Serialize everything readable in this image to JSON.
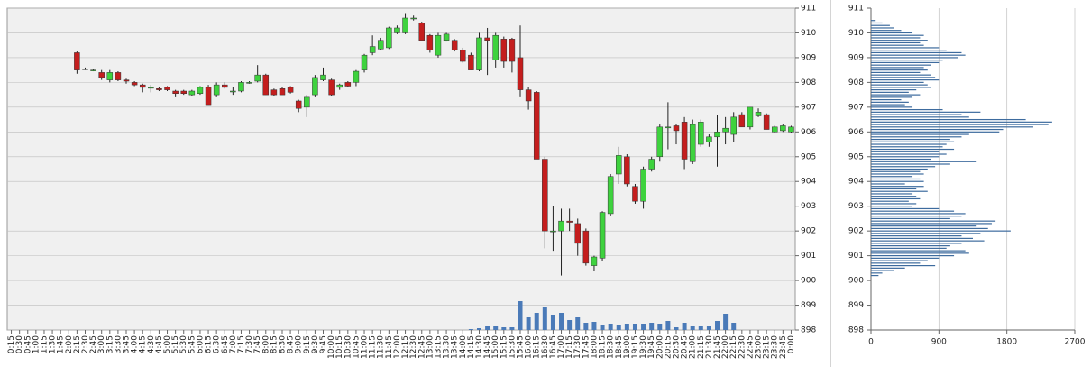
{
  "chart_data": [
    {
      "type": "candlestick",
      "categories": [
        "0:15",
        "0:30",
        "0:45",
        "1:00",
        "1:15",
        "1:30",
        "1:45",
        "2:00",
        "2:15",
        "2:30",
        "2:45",
        "3:00",
        "3:15",
        "3:30",
        "3:45",
        "4:00",
        "4:15",
        "4:30",
        "4:45",
        "5:00",
        "5:15",
        "5:30",
        "5:45",
        "6:00",
        "6:15",
        "6:30",
        "6:45",
        "7:00",
        "7:15",
        "7:30",
        "7:45",
        "8:00",
        "8:15",
        "8:30",
        "8:45",
        "9:00",
        "9:15",
        "9:30",
        "9:45",
        "10:00",
        "10:15",
        "10:30",
        "10:45",
        "11:00",
        "11:15",
        "11:30",
        "11:45",
        "12:00",
        "12:15",
        "12:30",
        "12:45",
        "13:00",
        "13:15",
        "13:30",
        "13:45",
        "14:00",
        "14:15",
        "14:30",
        "14:45",
        "15:00",
        "15:15",
        "15:30",
        "15:45",
        "16:00",
        "16:15",
        "16:30",
        "16:45",
        "17:00",
        "17:15",
        "17:30",
        "17:45",
        "18:00",
        "18:15",
        "18:30",
        "18:45",
        "19:00",
        "19:15",
        "19:30",
        "19:45",
        "20:00",
        "20:15",
        "20:30",
        "20:45",
        "21:00",
        "21:15",
        "21:30",
        "21:45",
        "22:00",
        "22:15",
        "22:30",
        "22:45",
        "23:00",
        "23:15",
        "23:30",
        "23:45",
        "0:00"
      ],
      "open": [
        null,
        null,
        null,
        null,
        null,
        null,
        null,
        null,
        909.2,
        908.55,
        908.5,
        908.4,
        908.1,
        908.4,
        908.1,
        908.0,
        907.9,
        907.8,
        907.75,
        907.8,
        907.65,
        907.65,
        907.5,
        907.55,
        907.8,
        907.5,
        907.9,
        907.65,
        907.65,
        908.0,
        908.05,
        908.3,
        907.7,
        907.75,
        907.8,
        907.25,
        907.0,
        907.5,
        908.1,
        908.1,
        907.8,
        908.0,
        908.0,
        908.5,
        909.2,
        909.35,
        909.4,
        910.0,
        910.0,
        910.6,
        910.4,
        909.9,
        909.1,
        909.7,
        909.7,
        909.3,
        909.1,
        908.5,
        909.8,
        908.9,
        909.75,
        909.75,
        909.0,
        907.7,
        907.6,
        904.9,
        902.0,
        902.0,
        902.4,
        902.3,
        902.0,
        900.6,
        900.9,
        902.7,
        904.3,
        905.0,
        903.8,
        903.2,
        904.5,
        905.0,
        906.2,
        906.25,
        906.4,
        904.8,
        905.5,
        905.6,
        905.8,
        906.0,
        905.9,
        906.7,
        906.2,
        906.65,
        906.7,
        906.0,
        906.05,
        906.0
      ],
      "high": [
        null,
        null,
        null,
        null,
        null,
        null,
        null,
        null,
        909.25,
        908.6,
        908.55,
        908.5,
        908.5,
        908.45,
        908.15,
        908.05,
        907.95,
        907.9,
        907.8,
        907.85,
        907.7,
        907.7,
        907.7,
        907.85,
        907.9,
        908.0,
        908.0,
        907.8,
        908.05,
        908.05,
        908.7,
        908.35,
        907.75,
        907.8,
        907.85,
        907.3,
        907.5,
        908.3,
        908.6,
        908.15,
        907.95,
        908.05,
        908.5,
        909.15,
        909.9,
        909.8,
        910.25,
        910.3,
        910.8,
        910.7,
        910.45,
        909.95,
        910.0,
        910.0,
        909.75,
        909.4,
        909.2,
        910.0,
        910.2,
        910.0,
        909.85,
        909.8,
        910.3,
        907.8,
        907.65,
        905.0,
        903.0,
        902.9,
        902.9,
        902.5,
        902.1,
        901.0,
        902.8,
        904.3,
        905.4,
        905.1,
        903.9,
        904.6,
        905.0,
        906.3,
        907.2,
        906.3,
        906.6,
        906.5,
        906.5,
        905.9,
        906.7,
        906.6,
        906.8,
        906.8,
        907.0,
        906.95,
        906.75,
        906.25,
        906.3,
        906.25
      ],
      "low": [
        null,
        null,
        null,
        null,
        null,
        null,
        null,
        null,
        908.35,
        908.5,
        908.45,
        908.1,
        908.0,
        908.05,
        907.95,
        907.85,
        907.6,
        907.6,
        907.65,
        907.65,
        907.4,
        907.5,
        907.45,
        907.5,
        907.1,
        907.4,
        907.75,
        907.5,
        907.6,
        907.95,
        908.0,
        907.5,
        907.45,
        907.5,
        907.55,
        906.8,
        906.6,
        907.4,
        908.05,
        907.45,
        907.7,
        907.8,
        907.85,
        908.4,
        909.1,
        909.3,
        909.35,
        909.95,
        909.95,
        910.5,
        909.7,
        909.2,
        909.0,
        909.65,
        909.25,
        908.8,
        908.5,
        908.45,
        908.3,
        908.6,
        908.6,
        908.4,
        907.4,
        906.9,
        904.9,
        901.3,
        901.2,
        900.2,
        902.0,
        901.0,
        900.6,
        900.4,
        900.8,
        902.6,
        903.9,
        903.8,
        903.1,
        902.9,
        904.4,
        904.8,
        905.3,
        905.5,
        904.5,
        904.7,
        905.4,
        905.4,
        904.6,
        905.5,
        905.6,
        906.2,
        906.1,
        906.6,
        906.1,
        905.95,
        906.0,
        905.95
      ],
      "close": [
        null,
        null,
        null,
        null,
        null,
        null,
        null,
        null,
        908.5,
        908.55,
        908.5,
        908.2,
        908.4,
        908.1,
        908.05,
        907.9,
        907.8,
        907.8,
        907.7,
        907.7,
        907.55,
        907.55,
        907.65,
        907.8,
        907.1,
        907.9,
        907.8,
        907.65,
        908.0,
        908.0,
        908.3,
        907.5,
        907.5,
        907.5,
        907.6,
        906.95,
        907.4,
        908.2,
        908.3,
        907.5,
        907.9,
        907.85,
        908.45,
        909.1,
        909.45,
        909.7,
        910.2,
        910.2,
        910.6,
        910.6,
        909.7,
        909.3,
        909.9,
        909.95,
        909.3,
        908.85,
        908.5,
        909.8,
        909.7,
        909.9,
        908.85,
        908.85,
        907.7,
        907.25,
        904.9,
        902.0,
        902.0,
        902.4,
        902.35,
        901.5,
        900.7,
        900.95,
        902.75,
        904.2,
        905.05,
        903.9,
        903.2,
        904.5,
        904.9,
        906.2,
        906.2,
        906.05,
        904.9,
        906.3,
        906.4,
        905.8,
        906.0,
        906.15,
        906.6,
        906.2,
        907.0,
        906.8,
        906.1,
        906.2,
        906.25,
        906.2
      ],
      "volume": [
        null,
        null,
        null,
        null,
        null,
        null,
        null,
        null,
        null,
        null,
        null,
        null,
        null,
        null,
        null,
        null,
        null,
        null,
        null,
        null,
        null,
        null,
        null,
        null,
        null,
        null,
        null,
        null,
        null,
        null,
        null,
        null,
        null,
        null,
        null,
        null,
        null,
        null,
        null,
        null,
        null,
        null,
        null,
        null,
        null,
        null,
        null,
        null,
        null,
        null,
        null,
        null,
        null,
        null,
        null,
        null,
        1,
        2,
        4,
        4,
        3,
        3,
        32,
        14,
        19,
        26,
        17,
        19,
        11,
        14,
        8,
        9,
        6,
        7,
        6,
        7,
        7,
        7,
        8,
        7,
        10,
        3,
        8,
        5,
        5,
        5,
        10,
        18,
        8,
        null,
        null,
        null,
        null,
        null,
        null,
        null
      ],
      "up_color": "#3ed23e",
      "down_color": "#c41e1e",
      "volume_color": "#4a7ab8",
      "ylim": [
        898,
        911
      ],
      "yticks": [
        898,
        899,
        900,
        901,
        902,
        903,
        904,
        905,
        906,
        907,
        908,
        909,
        910,
        911
      ],
      "grid": true
    },
    {
      "type": "barh",
      "y": [
        910.5,
        910.4,
        910.3,
        910.2,
        910.1,
        910.0,
        909.9,
        909.8,
        909.7,
        909.6,
        909.5,
        909.4,
        909.3,
        909.2,
        909.1,
        909.0,
        908.9,
        908.8,
        908.7,
        908.6,
        908.5,
        908.4,
        908.3,
        908.2,
        908.1,
        908.0,
        907.9,
        907.8,
        907.7,
        907.6,
        907.5,
        907.4,
        907.3,
        907.2,
        907.1,
        907.0,
        906.9,
        906.8,
        906.7,
        906.6,
        906.5,
        906.4,
        906.3,
        906.2,
        906.1,
        906.0,
        905.9,
        905.8,
        905.7,
        905.6,
        905.5,
        905.4,
        905.3,
        905.2,
        905.1,
        905.0,
        904.9,
        904.8,
        904.7,
        904.6,
        904.5,
        904.4,
        904.3,
        904.2,
        904.1,
        904.0,
        903.9,
        903.8,
        903.7,
        903.6,
        903.5,
        903.4,
        903.3,
        903.2,
        903.1,
        903.0,
        902.9,
        902.8,
        902.7,
        902.6,
        902.5,
        902.4,
        902.3,
        902.2,
        902.1,
        902.0,
        901.9,
        901.8,
        901.7,
        901.6,
        901.5,
        901.4,
        901.3,
        901.2,
        901.1,
        901.0,
        900.9,
        900.8,
        900.7,
        900.6,
        900.5,
        900.4,
        900.3,
        900.2
      ],
      "values": [
        50,
        150,
        250,
        300,
        400,
        550,
        700,
        650,
        750,
        650,
        700,
        900,
        1000,
        1200,
        1250,
        1150,
        950,
        900,
        800,
        700,
        750,
        650,
        800,
        850,
        900,
        700,
        750,
        800,
        600,
        500,
        650,
        550,
        400,
        500,
        450,
        550,
        950,
        1450,
        1200,
        1300,
        2050,
        2400,
        2350,
        2150,
        1750,
        1700,
        1300,
        1200,
        1050,
        1100,
        1000,
        950,
        1100,
        900,
        1000,
        900,
        800,
        1400,
        1050,
        850,
        750,
        650,
        700,
        550,
        650,
        700,
        450,
        700,
        600,
        750,
        550,
        600,
        650,
        500,
        600,
        550,
        900,
        1100,
        1250,
        1200,
        1050,
        1650,
        1600,
        1400,
        1550,
        1850,
        1450,
        1200,
        1350,
        1500,
        1200,
        1050,
        1000,
        1250,
        1300,
        1100,
        900,
        750,
        650,
        850,
        450,
        300,
        150,
        100
      ],
      "color": "#3d6b9e",
      "xlim": [
        0,
        2700
      ],
      "xticks": [
        0,
        900,
        1800,
        2700
      ],
      "ylim": [
        898,
        911
      ],
      "yticks": [
        898,
        899,
        900,
        901,
        902,
        903,
        904,
        905,
        906,
        907,
        908,
        909,
        910,
        911
      ],
      "grid": true
    }
  ]
}
